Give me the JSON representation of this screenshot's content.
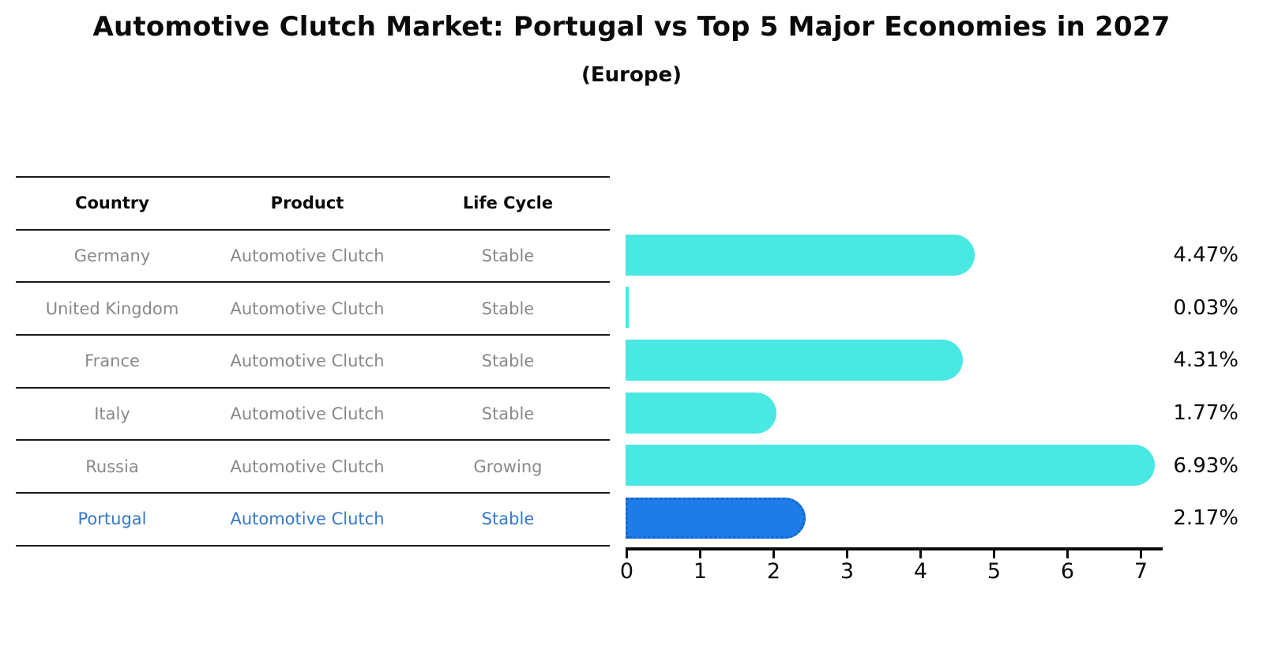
{
  "title": "Automotive Clutch Market: Portugal vs Top 5 Major Economies in 2027",
  "subtitle": "(Europe)",
  "table": {
    "headers": [
      "Country",
      "Product",
      "Life Cycle"
    ],
    "rows": [
      {
        "country": "Germany",
        "product": "Automotive Clutch",
        "life_cycle": "Stable",
        "highlight": false
      },
      {
        "country": "United Kingdom",
        "product": "Automotive Clutch",
        "life_cycle": "Stable",
        "highlight": false
      },
      {
        "country": "France",
        "product": "Automotive Clutch",
        "life_cycle": "Stable",
        "highlight": false
      },
      {
        "country": "Italy",
        "product": "Automotive Clutch",
        "life_cycle": "Stable",
        "highlight": false
      },
      {
        "country": "Russia",
        "product": "Automotive Clutch",
        "life_cycle": "Growing",
        "highlight": false
      },
      {
        "country": "Portugal",
        "product": "Automotive Clutch",
        "life_cycle": "Stable",
        "highlight": true
      }
    ]
  },
  "chart_data": {
    "type": "bar",
    "orientation": "horizontal",
    "title": "Automotive Clutch Market: Portugal vs Top 5 Major Economies in 2027",
    "subtitle": "(Europe)",
    "categories": [
      "Germany",
      "United Kingdom",
      "France",
      "Italy",
      "Russia",
      "Portugal"
    ],
    "values": [
      4.47,
      0.03,
      4.31,
      1.77,
      6.93,
      2.17
    ],
    "value_labels": [
      "4.47%",
      "0.03%",
      "4.31%",
      "1.77%",
      "6.93%",
      "2.17%"
    ],
    "x_ticks": [
      0,
      1,
      2,
      3,
      4,
      5,
      6,
      7
    ],
    "xlim": [
      0,
      7.3
    ],
    "grid": false,
    "legend": false,
    "highlight_index": 5,
    "bar_color_default": "#4AE8E3",
    "bar_color_highlight": "#1E7CE8",
    "highlight_border_color": "#1566D0"
  },
  "colors": {
    "background": "#ffffff",
    "table_line": "#1a1a1a",
    "text_muted": "#898989",
    "text_highlight": "#3579cb",
    "text_main": "#0a0a0a"
  }
}
